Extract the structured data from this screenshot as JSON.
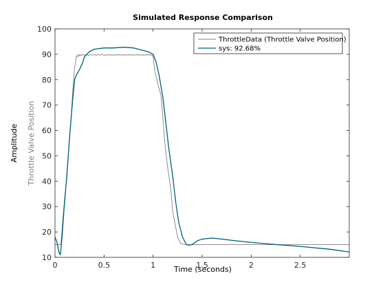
{
  "chart_data": {
    "type": "line",
    "title": "Simulated Response Comparison",
    "xlabel": "Time (seconds)",
    "ylabel": "Amplitude",
    "ylabel_secondary": "Throttle Valve Position",
    "xlim": [
      0,
      3
    ],
    "ylim": [
      10,
      100
    ],
    "xticks": [
      0,
      0.5,
      1,
      1.5,
      2,
      2.5
    ],
    "xtick_labels": [
      "0",
      "0.5",
      "1",
      "1.5",
      "2",
      "2.5"
    ],
    "yticks": [
      10,
      20,
      30,
      40,
      50,
      60,
      70,
      80,
      90,
      100
    ],
    "ytick_labels": [
      "10",
      "20",
      "30",
      "40",
      "50",
      "60",
      "70",
      "80",
      "90",
      "100"
    ],
    "legend_position": "top-right",
    "series": [
      {
        "name": "ThrottleData (Throttle Valve Position)",
        "color": "#808080",
        "x": [
          0,
          0.02,
          0.05,
          0.06,
          0.08,
          0.1,
          0.12,
          0.14,
          0.16,
          0.18,
          0.2,
          0.21,
          0.22,
          0.23,
          0.24,
          0.25,
          0.26,
          0.27,
          0.28,
          0.3,
          0.32,
          0.34,
          0.36,
          0.38,
          0.4,
          0.42,
          0.44,
          0.46,
          0.48,
          0.5,
          0.55,
          0.6,
          0.65,
          0.7,
          0.75,
          0.8,
          0.85,
          0.9,
          0.95,
          0.99,
          1.0,
          1.02,
          1.05,
          1.08,
          1.1,
          1.12,
          1.15,
          1.18,
          1.2,
          1.22,
          1.25,
          1.28,
          1.3,
          1.32,
          1.35,
          1.4,
          1.5,
          1.75,
          2.0,
          2.5,
          3.0
        ],
        "y": [
          15,
          15,
          15,
          15,
          25,
          34,
          41,
          53,
          62,
          75,
          85,
          87,
          89.5,
          89,
          90,
          89.3,
          89.8,
          89.5,
          90,
          89.6,
          90,
          89.5,
          90,
          89.6,
          90,
          89.5,
          90,
          89.6,
          90,
          89.6,
          89.8,
          89.7,
          89.8,
          89.7,
          89.8,
          89.7,
          89.8,
          89.7,
          89.8,
          89.7,
          89,
          83,
          78,
          74,
          65,
          55,
          45,
          37,
          28,
          24,
          18,
          15.5,
          15.2,
          15.1,
          15,
          15,
          15,
          15,
          15,
          15,
          15
        ]
      },
      {
        "name": "sys: 92.68%",
        "color": "#005f73",
        "x": [
          0,
          0.02,
          0.04,
          0.055,
          0.07,
          0.09,
          0.12,
          0.15,
          0.18,
          0.2,
          0.22,
          0.25,
          0.28,
          0.3,
          0.35,
          0.4,
          0.5,
          0.6,
          0.7,
          0.8,
          0.9,
          0.95,
          1.0,
          1.03,
          1.06,
          1.1,
          1.13,
          1.16,
          1.2,
          1.23,
          1.26,
          1.3,
          1.34,
          1.37,
          1.4,
          1.45,
          1.5,
          1.6,
          1.7,
          1.8,
          2.0,
          2.2,
          2.5,
          2.8,
          3.0
        ],
        "y": [
          18,
          16,
          12,
          11,
          17,
          28,
          42,
          58,
          72,
          80,
          82,
          84,
          86.5,
          89,
          91,
          92,
          92.5,
          92.5,
          92.8,
          92.5,
          91.5,
          91,
          90,
          87,
          82,
          73,
          63,
          53,
          42,
          32,
          24,
          18,
          15,
          14.8,
          15.1,
          16.5,
          17.2,
          17.6,
          17.2,
          16.7,
          15.9,
          15.2,
          14.3,
          13.2,
          12.1
        ]
      }
    ]
  }
}
